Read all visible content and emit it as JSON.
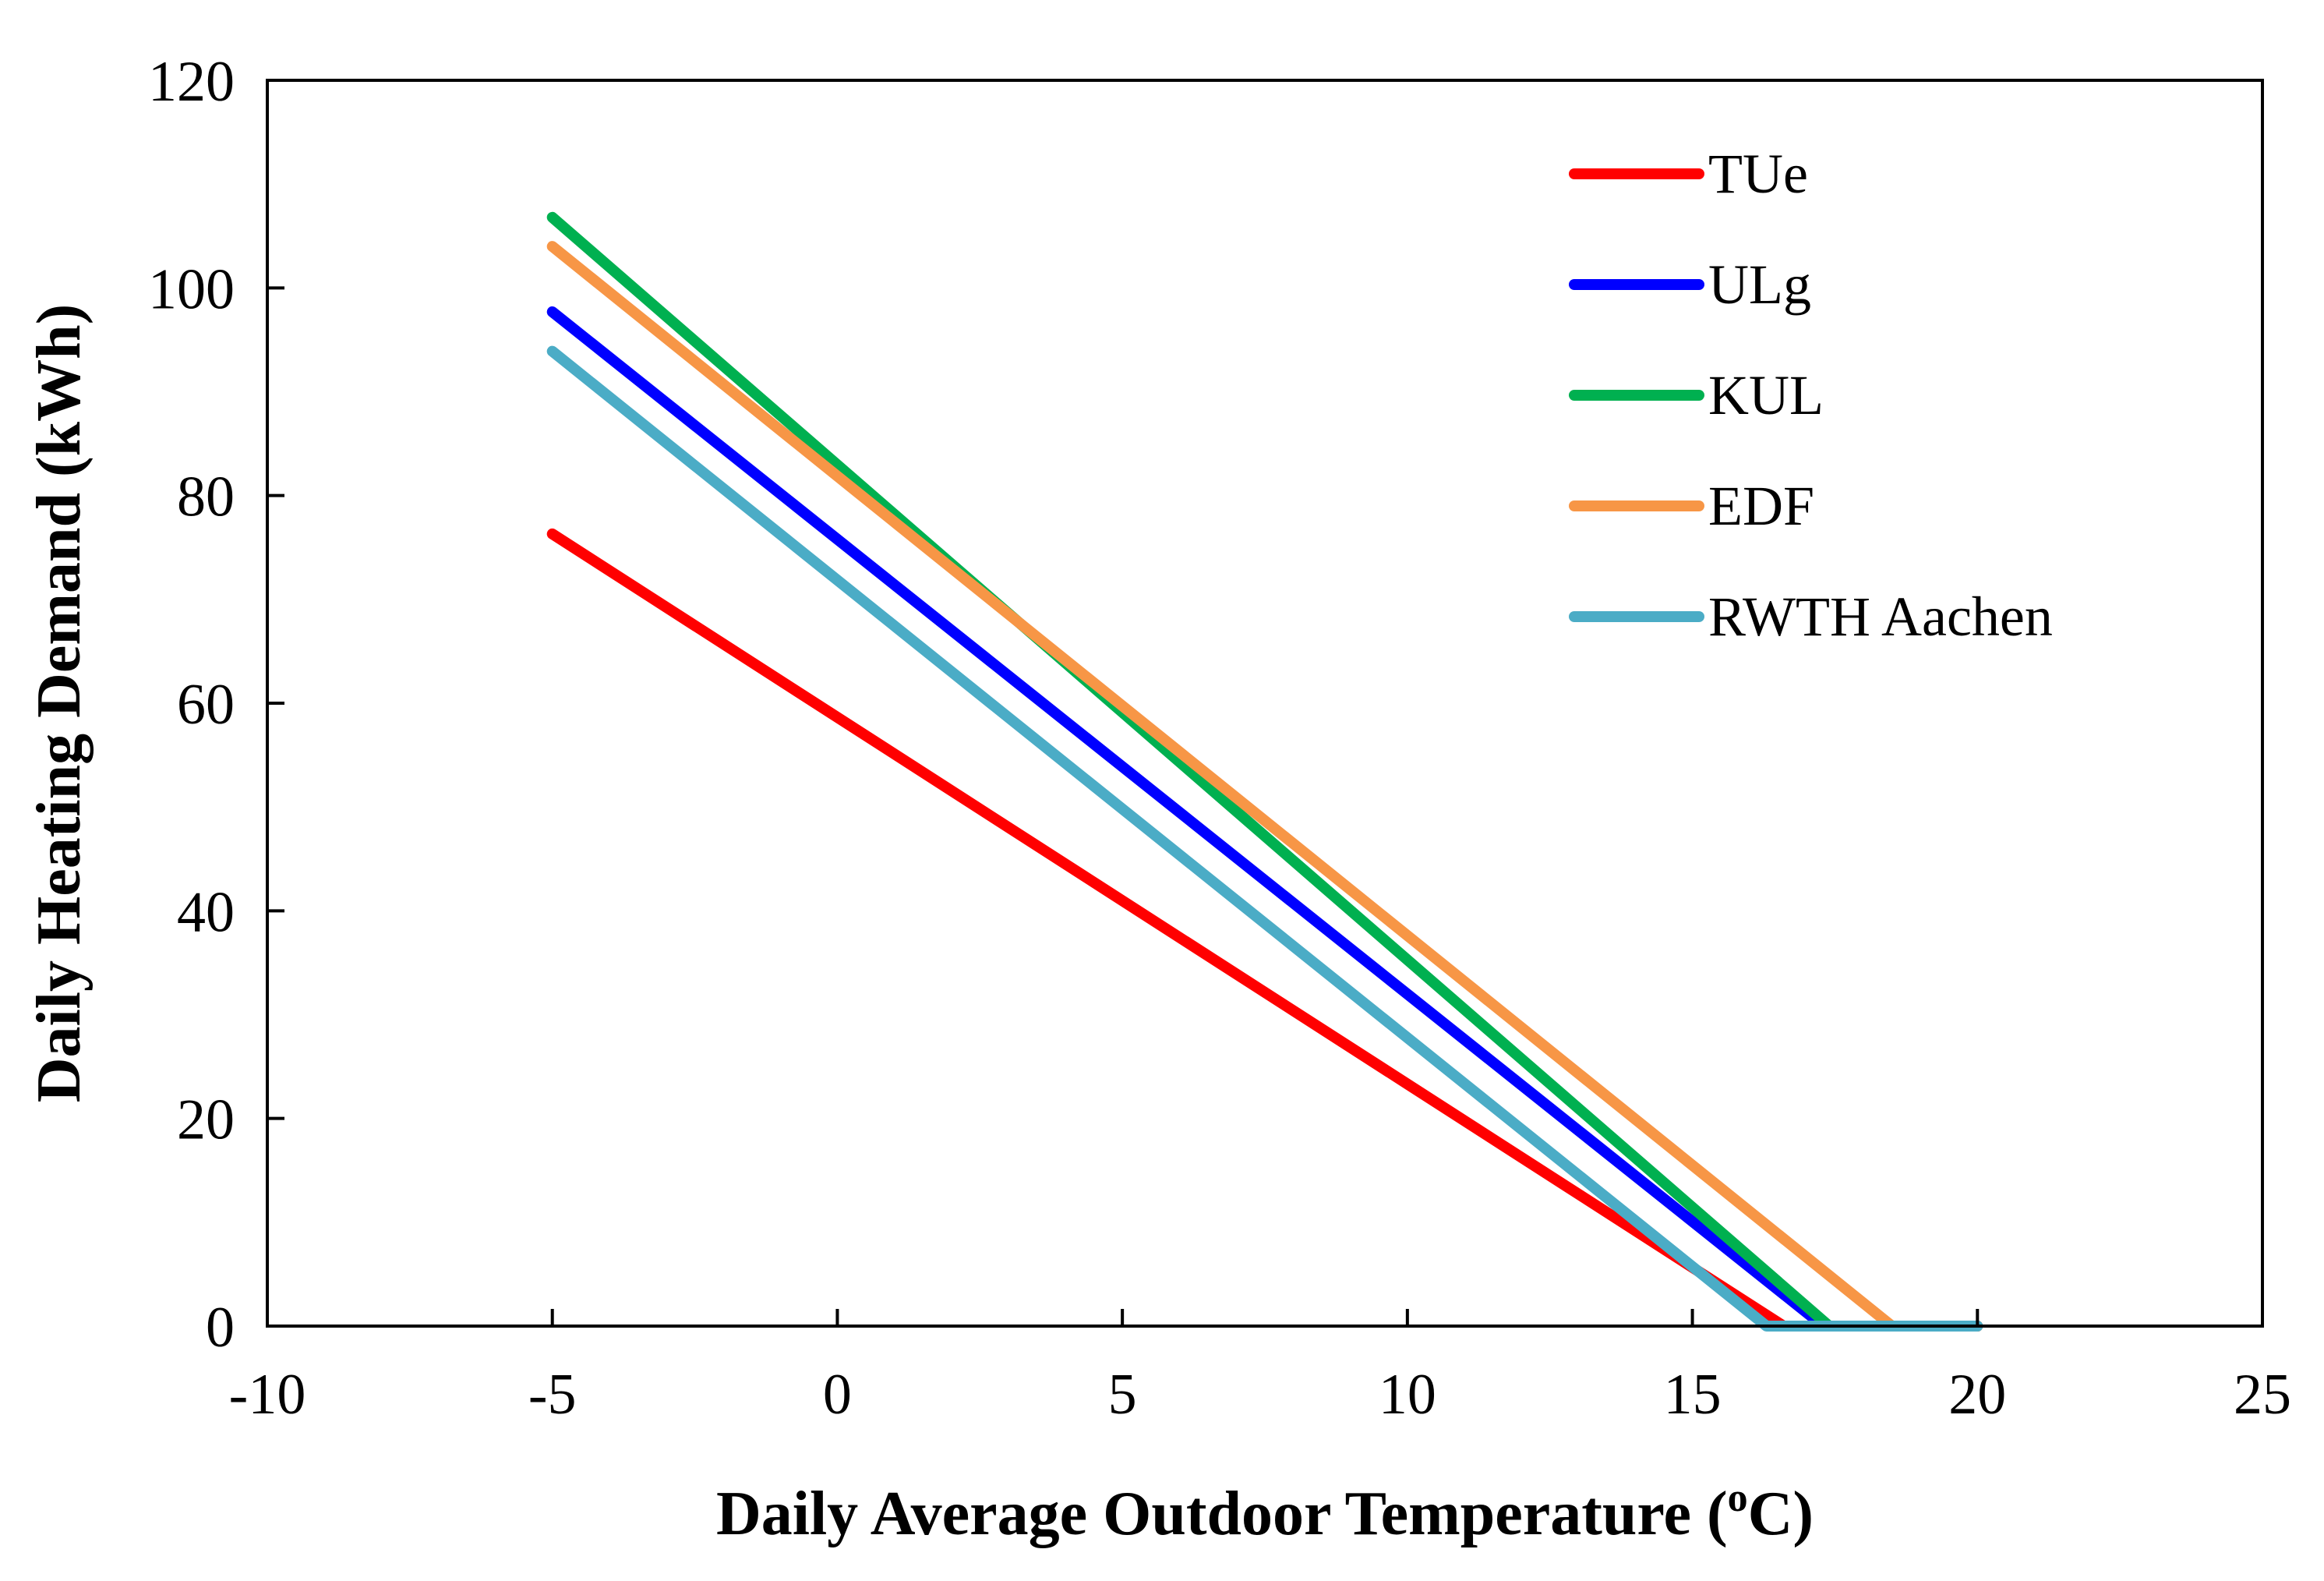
{
  "chart_data": {
    "type": "line",
    "title": "",
    "xlabel": "Daily Average Outdoor Temperature (",
    "xlabel_sup": "o",
    "xlabel_suffix": "C)",
    "ylabel": "Daily Heating Demand (kWh)",
    "xlim": [
      -10,
      25
    ],
    "ylim": [
      0,
      120
    ],
    "xticks": [
      "-10",
      "-5",
      "0",
      "5",
      "10",
      "15",
      "20",
      "25"
    ],
    "yticks": [
      "0",
      "20",
      "40",
      "60",
      "80",
      "100",
      "120"
    ],
    "grid": false,
    "legend_position": "top-right",
    "series": [
      {
        "name": "TUe",
        "color": "#ff0000",
        "points": [
          [
            -5,
            76.3
          ],
          [
            16.6,
            0
          ],
          [
            20,
            0
          ]
        ]
      },
      {
        "name": "ULg",
        "color": "#0000ff",
        "points": [
          [
            -5,
            97.7
          ],
          [
            17.3,
            0
          ],
          [
            20,
            0
          ]
        ]
      },
      {
        "name": "KUL",
        "color": "#00b050",
        "points": [
          [
            -5,
            106.8
          ],
          [
            17.4,
            0
          ],
          [
            20,
            0
          ]
        ]
      },
      {
        "name": "EDF",
        "color": "#f79646",
        "points": [
          [
            -5,
            104
          ],
          [
            18.5,
            0
          ],
          [
            20,
            0
          ]
        ]
      },
      {
        "name": "RWTH Aachen",
        "color": "#4bacc6",
        "points": [
          [
            -5,
            93.9
          ],
          [
            16.3,
            0
          ],
          [
            20,
            0
          ]
        ]
      }
    ]
  }
}
